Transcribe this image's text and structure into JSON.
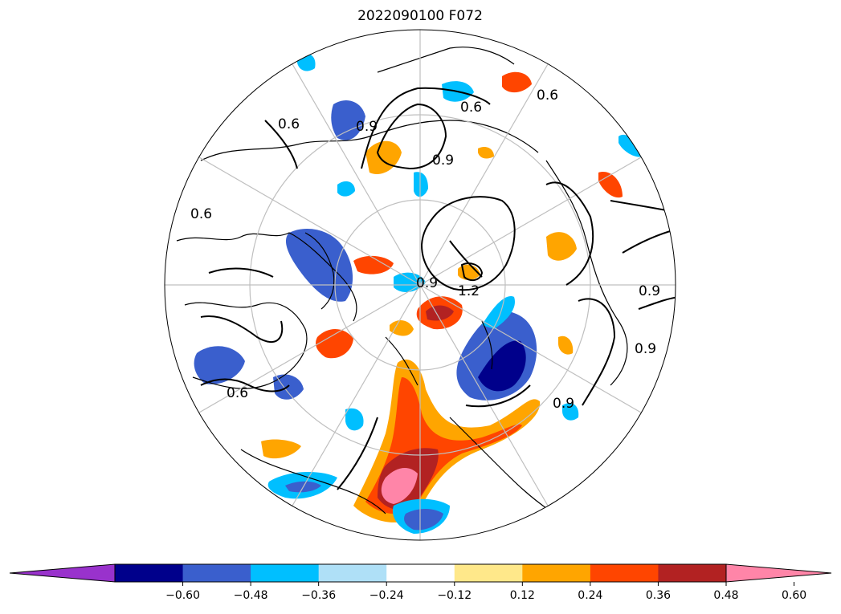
{
  "title": "2022090100 F072",
  "projection": "north-polar-stereographic",
  "colorbar": {
    "extend": "both",
    "ticks": [
      "−0.60",
      "−0.48",
      "−0.36",
      "−0.24",
      "−0.12",
      "0.12",
      "0.24",
      "0.36",
      "0.48",
      "0.60"
    ],
    "colors": [
      "#9932cc",
      "#00008b",
      "#3a5fcd",
      "#00bfff",
      "#afe0f7",
      "#ffffff",
      "#ffe88a",
      "#ffa500",
      "#ff4500",
      "#b22222",
      "#ff85a8"
    ]
  },
  "contour_labels": [
    "0.6",
    "0.6",
    "0.6",
    "0.6",
    "0.9",
    "0.9",
    "0.9",
    "0.9",
    "0.9",
    "1.2",
    "0.9",
    "0.6"
  ]
}
